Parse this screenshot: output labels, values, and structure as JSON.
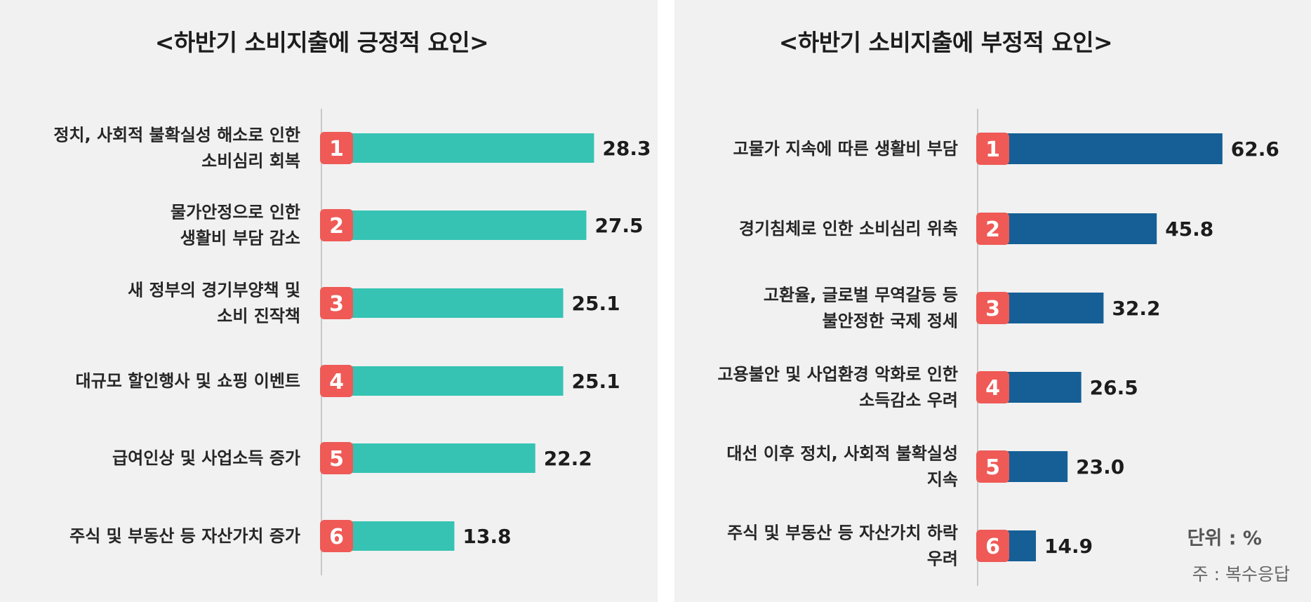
{
  "colors": {
    "left_bar": "#36c3b3",
    "right_bar": "#155f96",
    "rank_badge": "#ef5a56",
    "axis": "#c8c8c8"
  },
  "unit": "단위 : %",
  "note": "주 : 복수응답",
  "chart_data": [
    {
      "type": "bar",
      "orientation": "horizontal",
      "title": "<하반기 소비지출에 긍정적 요인>",
      "ranks": [
        "1",
        "2",
        "3",
        "4",
        "5",
        "6"
      ],
      "categories": [
        [
          "정치, 사회적 불확실성 해소로 인한",
          "소비심리 회복"
        ],
        [
          "물가안정으로 인한",
          "생활비 부담 감소"
        ],
        [
          "새 정부의 경기부양책 및",
          "소비 진작책"
        ],
        [
          "대규모 할인행사 및 쇼핑 이벤트"
        ],
        [
          "급여인상 및 사업소득 증가"
        ],
        [
          "주식 및 부동산 등 자산가치 증가"
        ]
      ],
      "values": [
        28.3,
        27.5,
        25.1,
        25.1,
        22.2,
        13.8
      ],
      "value_labels": [
        "28.3",
        "27.5",
        "25.1",
        "25.1",
        "22.2",
        "13.8"
      ],
      "xlim": [
        0,
        30.6
      ]
    },
    {
      "type": "bar",
      "orientation": "horizontal",
      "title": "<하반기 소비지출에 부정적 요인>",
      "ranks": [
        "1",
        "2",
        "3",
        "4",
        "5",
        "6"
      ],
      "categories": [
        [
          "고물가 지속에 따른 생활비 부담"
        ],
        [
          "경기침체로 인한 소비심리 위축"
        ],
        [
          "고환율, 글로벌 무역갈등 등",
          "불안정한 국제 정세"
        ],
        [
          "고용불안 및 사업환경 악화로 인한",
          "소득감소 우려"
        ],
        [
          "대선 이후 정치, 사회적 불확실성",
          "지속"
        ],
        [
          "주식 및 부동산 등 자산가치 하락",
          "우려"
        ]
      ],
      "values": [
        62.6,
        45.8,
        32.2,
        26.5,
        23.0,
        14.9
      ],
      "value_labels": [
        "62.6",
        "45.8",
        "32.2",
        "26.5",
        "23.0",
        "14.9"
      ],
      "xlim": [
        0,
        67.3
      ]
    }
  ]
}
